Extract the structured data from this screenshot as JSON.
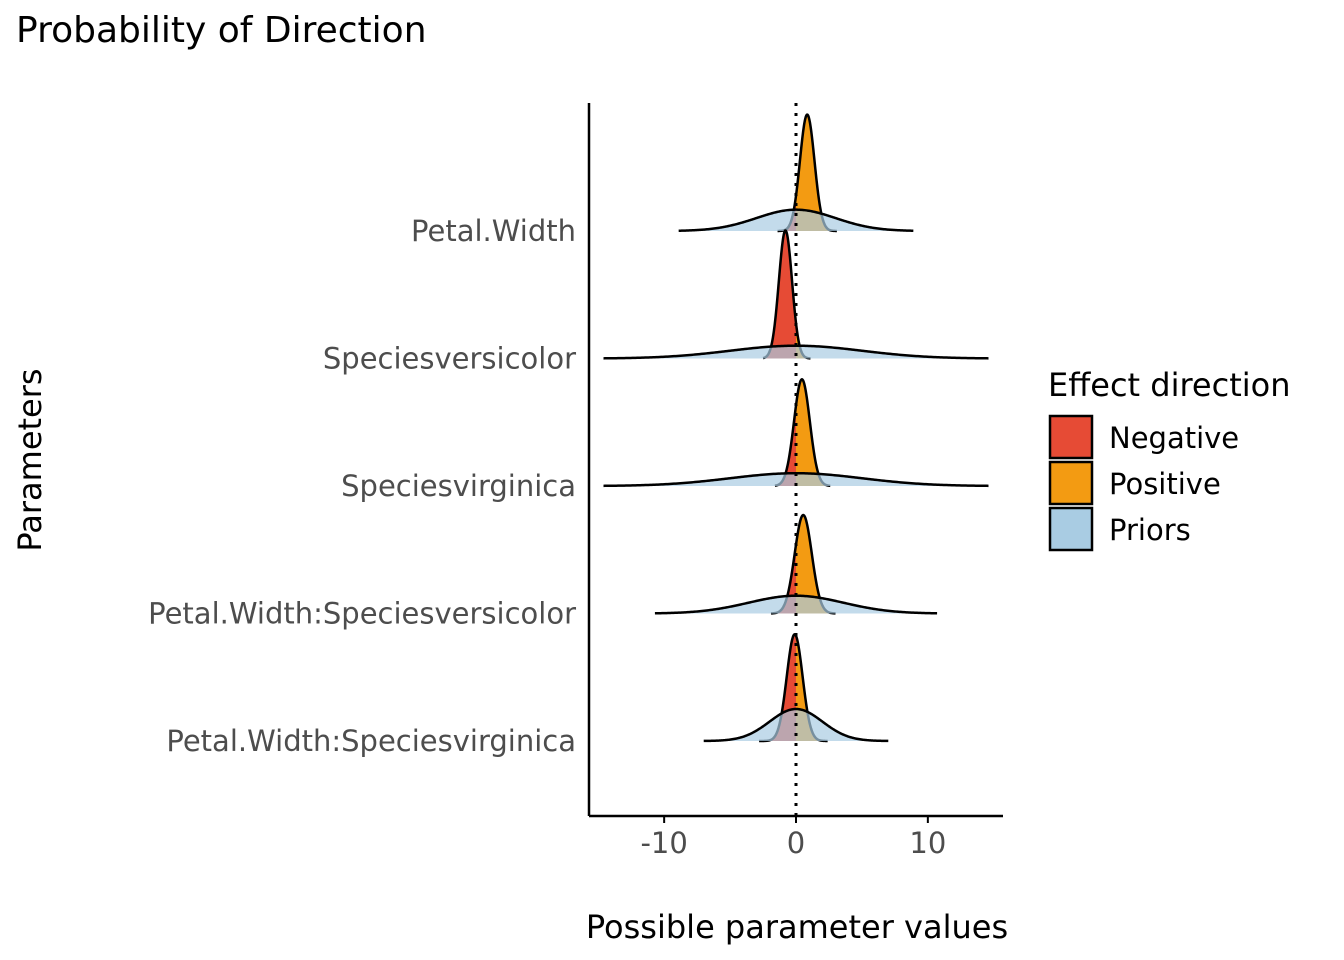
{
  "chart_data": {
    "type": "ridgeline-density",
    "title": "Probability of Direction",
    "xlabel": "Possible parameter values",
    "ylabel": "Parameters",
    "xlim": [
      -15.7,
      15.7
    ],
    "x_ticks": [
      -10,
      0,
      10
    ],
    "x_tick_labels": [
      "-10",
      "0",
      "10"
    ],
    "reference_line_x": 0,
    "parameters": [
      {
        "name": "Petal.Width",
        "posterior": {
          "mean": 0.85,
          "sd": 0.55,
          "min": -1.4,
          "max": 3.1
        },
        "prior": {
          "mean": 0.0,
          "sd": 3.0,
          "min": -8.9,
          "max": 8.9
        }
      },
      {
        "name": "Speciesversicolor",
        "posterior": {
          "mean": -0.8,
          "sd": 0.5,
          "min": -2.5,
          "max": 1.1
        },
        "prior": {
          "mean": 0.0,
          "sd": 5.0,
          "min": -14.6,
          "max": 14.6
        }
      },
      {
        "name": "Speciesvirginica",
        "posterior": {
          "mean": 0.45,
          "sd": 0.6,
          "min": -1.6,
          "max": 2.6
        },
        "prior": {
          "mean": 0.0,
          "sd": 5.0,
          "min": -14.6,
          "max": 14.6
        }
      },
      {
        "name": "Petal.Width:Speciesversicolor",
        "posterior": {
          "mean": 0.55,
          "sd": 0.65,
          "min": -1.9,
          "max": 3.0
        },
        "prior": {
          "mean": 0.0,
          "sd": 3.6,
          "min": -10.7,
          "max": 10.7
        }
      },
      {
        "name": "Petal.Width:Speciesvirginica",
        "posterior": {
          "mean": -0.1,
          "sd": 0.6,
          "min": -2.8,
          "max": 2.4
        },
        "prior": {
          "mean": 0.0,
          "sd": 2.0,
          "min": -7.0,
          "max": 7.0
        }
      }
    ],
    "legend": {
      "title": "Effect direction",
      "position": "right",
      "entries": [
        {
          "label": "Negative",
          "color": "#E64B35"
        },
        {
          "label": "Positive",
          "color": "#F39B12"
        },
        {
          "label": "Priors",
          "color": "#A9CCE3"
        }
      ]
    },
    "colors": {
      "negative": "#E64B35",
      "positive": "#F39B12",
      "priors": "#A9CCE3",
      "outline": "#000000"
    }
  }
}
